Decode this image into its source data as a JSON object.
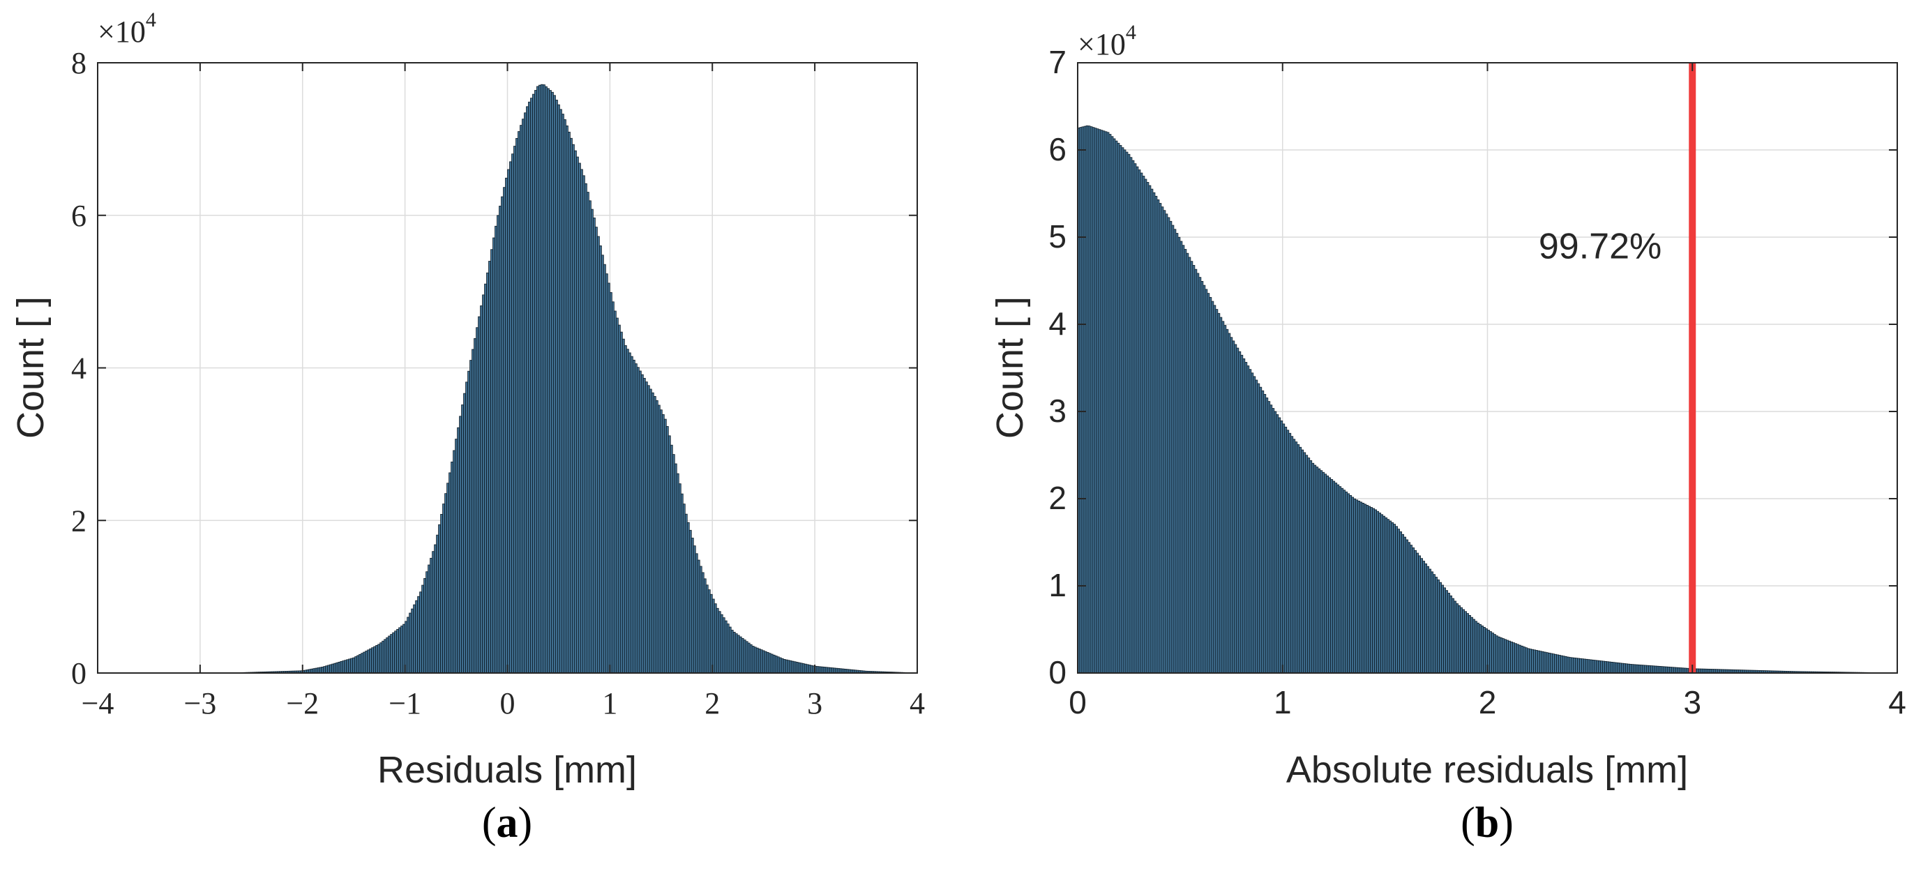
{
  "chart_data": [
    {
      "type": "bar",
      "panel": "a",
      "caption_letter": "a",
      "xlabel": "Residuals [mm]",
      "ylabel": "Count [ ]",
      "y_multiplier": "×10",
      "y_exponent": "4",
      "xlim": [
        -4,
        4
      ],
      "ylim": [
        0,
        8
      ],
      "xticks": [
        -4,
        -3,
        -2,
        -1,
        0,
        1,
        2,
        3,
        4
      ],
      "xtick_labels": [
        "−4",
        "−3",
        "−2",
        "−1",
        "0",
        "1",
        "2",
        "3",
        "4"
      ],
      "yticks": [
        0,
        2,
        4,
        6,
        8
      ],
      "ytick_labels": [
        "0",
        "2",
        "4",
        "6",
        "8"
      ],
      "grid": true,
      "bar_color": "#3f6e8f",
      "edge_color": "#0d1b26",
      "envelope_x": [
        -4.0,
        -2.6,
        -2.0,
        -1.8,
        -1.5,
        -1.25,
        -1.0,
        -0.85,
        -0.7,
        -0.55,
        -0.4,
        -0.3,
        -0.2,
        -0.1,
        0.0,
        0.1,
        0.2,
        0.3,
        0.35,
        0.45,
        0.55,
        0.65,
        0.75,
        0.85,
        0.95,
        1.05,
        1.15,
        1.3,
        1.45,
        1.55,
        1.65,
        1.75,
        1.85,
        1.95,
        2.05,
        2.2,
        2.4,
        2.7,
        3.0,
        3.5,
        4.0
      ],
      "envelope_y": [
        0.0,
        0.005,
        0.03,
        0.08,
        0.2,
        0.38,
        0.65,
        1.05,
        1.7,
        2.7,
        3.8,
        4.5,
        5.2,
        5.95,
        6.55,
        7.05,
        7.45,
        7.7,
        7.72,
        7.6,
        7.3,
        6.9,
        6.5,
        5.95,
        5.35,
        4.75,
        4.3,
        3.95,
        3.6,
        3.3,
        2.7,
        2.05,
        1.55,
        1.15,
        0.85,
        0.55,
        0.35,
        0.18,
        0.09,
        0.025,
        0.0
      ]
    },
    {
      "type": "bar",
      "panel": "b",
      "caption_letter": "b",
      "xlabel": "Absolute residuals [mm]",
      "ylabel": "Count [ ]",
      "y_multiplier": "×10",
      "y_exponent": "4",
      "xlim": [
        0,
        4
      ],
      "ylim": [
        0,
        7
      ],
      "xticks": [
        0,
        1,
        2,
        3,
        4
      ],
      "xtick_labels": [
        "0",
        "1",
        "2",
        "3",
        "4"
      ],
      "yticks": [
        0,
        1,
        2,
        3,
        4,
        5,
        6,
        7
      ],
      "ytick_labels": [
        "0",
        "1",
        "2",
        "3",
        "4",
        "5",
        "6",
        "7"
      ],
      "grid": true,
      "bar_color": "#3f6e8f",
      "edge_color": "#0d1b26",
      "envelope_x": [
        0.0,
        0.05,
        0.15,
        0.25,
        0.35,
        0.45,
        0.55,
        0.65,
        0.75,
        0.85,
        0.95,
        1.05,
        1.15,
        1.25,
        1.35,
        1.45,
        1.55,
        1.65,
        1.75,
        1.85,
        1.95,
        2.05,
        2.2,
        2.4,
        2.7,
        3.0,
        3.5,
        4.0
      ],
      "envelope_y": [
        6.25,
        6.28,
        6.2,
        5.95,
        5.6,
        5.2,
        4.75,
        4.3,
        3.85,
        3.45,
        3.05,
        2.7,
        2.4,
        2.2,
        2.0,
        1.88,
        1.7,
        1.4,
        1.1,
        0.8,
        0.58,
        0.42,
        0.28,
        0.18,
        0.1,
        0.05,
        0.018,
        0.0
      ],
      "threshold_x": 3,
      "threshold_color": "#ef3b3b",
      "annotation": "99.72%",
      "annotation_x": 2.55,
      "annotation_y": 4.9,
      "annotation_color": "#e8161b"
    }
  ]
}
